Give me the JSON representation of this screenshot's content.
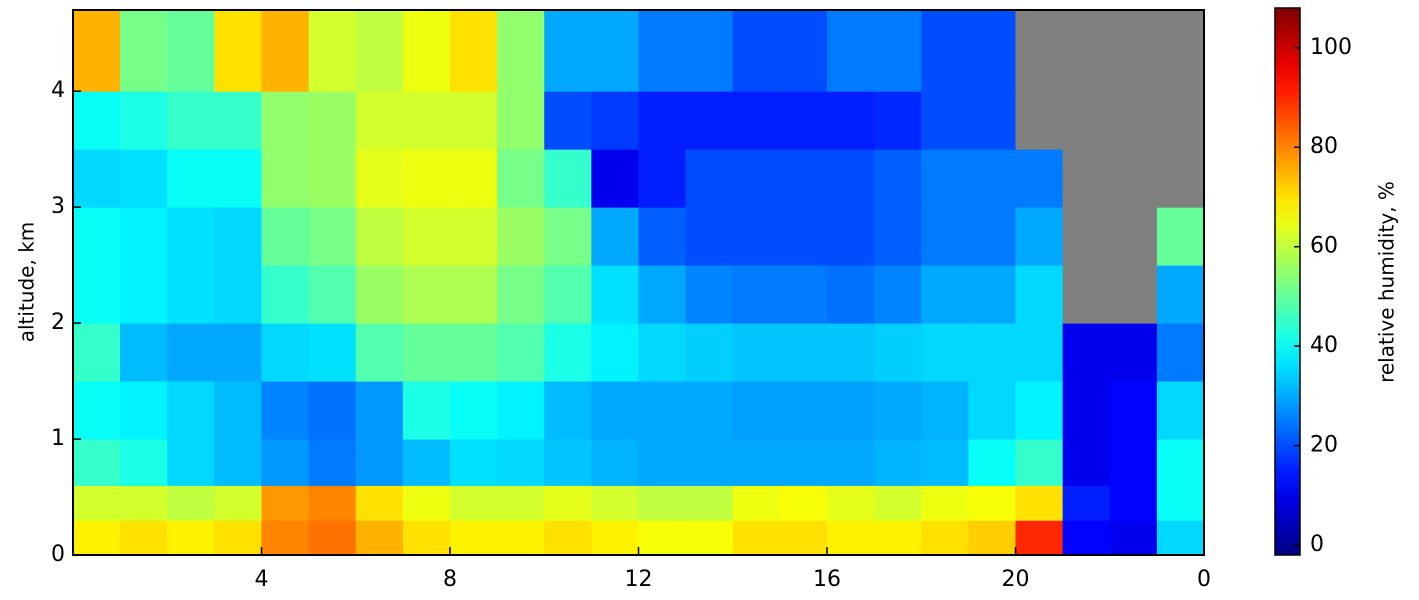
{
  "chart_data": {
    "type": "heatmap",
    "colormap": "jet",
    "null_color": "#808080",
    "xlabel": null,
    "ylabel": "altitude, km",
    "colorbar_label": "relative humidity, %",
    "xbins": [
      0,
      1,
      2,
      3,
      4,
      5,
      6,
      7,
      8,
      9,
      10,
      11,
      12,
      13,
      14,
      15,
      16,
      17,
      18,
      19,
      20,
      21,
      22,
      23,
      24
    ],
    "ybins": [
      0,
      0.3,
      0.6,
      1,
      1.5,
      2,
      2.5,
      3,
      3.5,
      4,
      4.7
    ],
    "xlim": [
      0,
      24
    ],
    "ylim": [
      0,
      4.7
    ],
    "clim": [
      -2,
      108
    ],
    "xticks": [
      4,
      8,
      12,
      16,
      20,
      {
        "value": 24,
        "label": "0"
      }
    ],
    "yticks": [
      0,
      1,
      2,
      3,
      4
    ],
    "cticks": [
      0,
      20,
      40,
      60,
      80,
      100
    ],
    "values": [
      [
        68,
        70,
        68,
        70,
        80,
        82,
        75,
        70,
        68,
        68,
        70,
        68,
        66,
        66,
        70,
        70,
        68,
        68,
        70,
        72,
        90,
        12,
        10,
        35
      ],
      [
        62,
        62,
        60,
        62,
        78,
        80,
        70,
        65,
        62,
        62,
        64,
        62,
        60,
        60,
        65,
        66,
        64,
        62,
        65,
        66,
        70,
        15,
        12,
        40
      ],
      [
        45,
        42,
        35,
        32,
        28,
        25,
        28,
        32,
        36,
        35,
        33,
        31,
        30,
        30,
        30,
        30,
        30,
        31,
        32,
        40,
        45,
        10,
        12,
        40
      ],
      [
        40,
        38,
        35,
        32,
        26,
        24,
        28,
        42,
        40,
        38,
        32,
        30,
        30,
        30,
        29,
        29,
        29,
        30,
        31,
        35,
        38,
        10,
        12,
        35
      ],
      [
        45,
        32,
        30,
        30,
        35,
        36,
        48,
        50,
        50,
        48,
        42,
        38,
        35,
        34,
        33,
        33,
        33,
        34,
        35,
        35,
        35,
        10,
        10,
        25
      ],
      [
        40,
        38,
        36,
        35,
        45,
        48,
        56,
        58,
        58,
        52,
        48,
        36,
        30,
        26,
        25,
        25,
        24,
        26,
        30,
        30,
        35,
        null,
        null,
        30
      ],
      [
        40,
        38,
        36,
        35,
        50,
        52,
        60,
        62,
        62,
        56,
        52,
        30,
        22,
        20,
        20,
        20,
        20,
        22,
        25,
        25,
        30,
        null,
        null,
        50
      ],
      [
        35,
        36,
        40,
        40,
        55,
        56,
        64,
        65,
        65,
        52,
        45,
        10,
        15,
        20,
        20,
        20,
        20,
        22,
        25,
        25,
        25,
        null,
        null,
        null
      ],
      [
        40,
        42,
        45,
        45,
        55,
        56,
        62,
        62,
        62,
        55,
        20,
        18,
        15,
        15,
        15,
        15,
        15,
        16,
        20,
        20,
        null,
        null,
        null,
        null
      ],
      [
        75,
        52,
        50,
        70,
        75,
        62,
        60,
        65,
        70,
        55,
        30,
        30,
        25,
        25,
        20,
        20,
        25,
        25,
        20,
        20,
        null,
        null,
        null,
        null
      ]
    ]
  }
}
